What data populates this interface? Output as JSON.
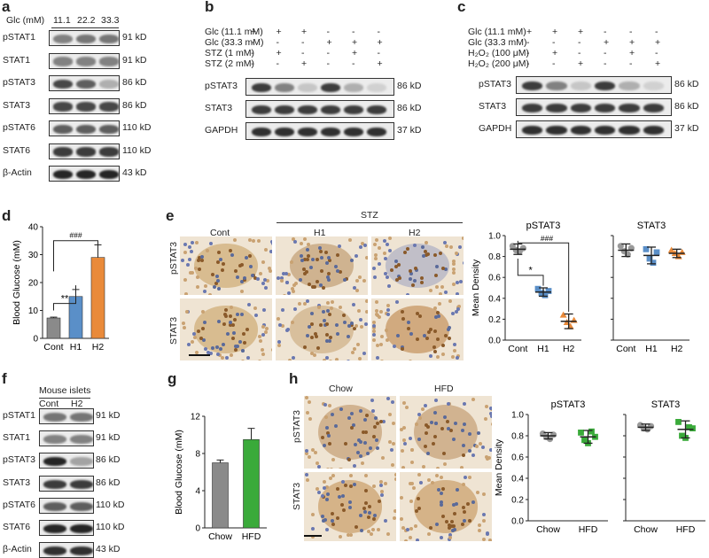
{
  "panels": {
    "a": {
      "letter": "a",
      "glc_header": "Glc (mM)",
      "glc_values": [
        "11.1",
        "22.2",
        "33.3"
      ],
      "rows": [
        {
          "label": "pSTAT1",
          "kd": "91 kD"
        },
        {
          "label": "STAT1",
          "kd": "91 kD"
        },
        {
          "label": "pSTAT3",
          "kd": "86 kD"
        },
        {
          "label": "STAT3",
          "kd": "86 kD"
        },
        {
          "label": "pSTAT6",
          "kd": "110 kD"
        },
        {
          "label": "STAT6",
          "kd": "110 kD"
        },
        {
          "label": "β-Actin",
          "kd": "43 kD"
        }
      ]
    },
    "b": {
      "letter": "b",
      "conditions": [
        {
          "label": "Glc (11.1 mM)",
          "signs": [
            "+",
            "+",
            "+",
            "-",
            "-",
            "-"
          ]
        },
        {
          "label": "Glc (33.3 mM)",
          "signs": [
            "-",
            "-",
            "-",
            "+",
            "+",
            "+"
          ]
        },
        {
          "label": "STZ (1 mM)",
          "signs": [
            "-",
            "+",
            "-",
            "-",
            "+",
            "-"
          ]
        },
        {
          "label": "STZ (2 mM)",
          "signs": [
            "-",
            "-",
            "+",
            "-",
            "-",
            "+"
          ]
        }
      ],
      "rows": [
        {
          "label": "pSTAT3",
          "kd": "86 kD"
        },
        {
          "label": "STAT3",
          "kd": "86 kD"
        },
        {
          "label": "GAPDH",
          "kd": "37 kD"
        }
      ]
    },
    "c": {
      "letter": "c",
      "conditions": [
        {
          "label": "Glc (11.1 mM)",
          "signs": [
            "+",
            "+",
            "+",
            "-",
            "-",
            "-"
          ]
        },
        {
          "label": "Glc (33.3 mM)",
          "signs": [
            "-",
            "-",
            "-",
            "+",
            "+",
            "+"
          ]
        },
        {
          "label": "H₂O₂ (100 μM)",
          "signs": [
            "-",
            "+",
            "-",
            "-",
            "+",
            "-"
          ]
        },
        {
          "label": "H₂O₂ (200 μM)",
          "signs": [
            "-",
            "-",
            "+",
            "-",
            "-",
            "+"
          ]
        }
      ],
      "rows": [
        {
          "label": "pSTAT3",
          "kd": "86 kD"
        },
        {
          "label": "STAT3",
          "kd": "86 kD"
        },
        {
          "label": "GAPDH",
          "kd": "37 kD"
        }
      ]
    },
    "d": {
      "letter": "d"
    },
    "e": {
      "letter": "e",
      "group_label": "STZ",
      "columns": [
        "Cont",
        "H1",
        "H2"
      ],
      "rows": [
        "pSTAT3",
        "STAT3"
      ]
    },
    "f": {
      "letter": "f",
      "header": "Mouse islets",
      "columns": [
        "Cont",
        "H2"
      ],
      "rows": [
        {
          "label": "pSTAT1",
          "kd": "91 kD"
        },
        {
          "label": "STAT1",
          "kd": "91 kD"
        },
        {
          "label": "pSTAT3",
          "kd": "86 kD"
        },
        {
          "label": "STAT3",
          "kd": "86 kD"
        },
        {
          "label": "pSTAT6",
          "kd": "110 kD"
        },
        {
          "label": "STAT6",
          "kd": "110 kD"
        },
        {
          "label": "β-Actin",
          "kd": "43 kD"
        }
      ]
    },
    "g": {
      "letter": "g"
    },
    "h": {
      "letter": "h",
      "columns": [
        "Chow",
        "HFD"
      ],
      "rows": [
        "pSTAT3",
        "STAT3"
      ]
    }
  },
  "chart_data": [
    {
      "id": "d",
      "type": "bar",
      "categories": [
        "Cont",
        "H1",
        "H2"
      ],
      "values": [
        7.3,
        15,
        29
      ],
      "errors": [
        0.3,
        2.5,
        4.5
      ],
      "colors": [
        "#8a8a8a",
        "#5a8fc8",
        "#e98a3a"
      ],
      "ylabel": "Blood Glucose (mM)",
      "ylim": [
        0,
        40
      ],
      "yticks": [
        "0",
        "10",
        "20",
        "30",
        "40"
      ],
      "annotations": [
        "**",
        "###"
      ]
    },
    {
      "id": "e1",
      "type": "scatter",
      "title": "pSTAT3",
      "categories": [
        "Cont",
        "H1",
        "H2"
      ],
      "means": [
        0.87,
        0.46,
        0.18
      ],
      "sd": [
        0.05,
        0.04,
        0.07
      ],
      "points": [
        [
          0.9,
          0.86,
          0.85,
          0.88
        ],
        [
          0.49,
          0.45,
          0.43,
          0.47
        ],
        [
          0.24,
          0.17,
          0.13,
          0.19
        ]
      ],
      "colors": [
        "#9a9a9a",
        "#5a8fc8",
        "#e98a3a"
      ],
      "ylabel": "Mean Density",
      "ylim": [
        0,
        1.0
      ],
      "yticks": [
        "0.0",
        "0.2",
        "0.4",
        "0.6",
        "0.8",
        "1.0"
      ],
      "annotations": [
        "*",
        "###"
      ]
    },
    {
      "id": "e2",
      "type": "scatter",
      "title": "STAT3",
      "categories": [
        "Cont",
        "H1",
        "H2"
      ],
      "means": [
        0.86,
        0.81,
        0.83
      ],
      "sd": [
        0.06,
        0.08,
        0.04
      ],
      "points": [
        [
          0.9,
          0.85,
          0.82,
          0.88
        ],
        [
          0.87,
          0.78,
          0.74,
          0.84
        ],
        [
          0.86,
          0.83,
          0.8,
          0.84
        ]
      ],
      "colors": [
        "#9a9a9a",
        "#5a8fc8",
        "#e98a3a"
      ],
      "ylim": [
        0,
        1.0
      ]
    },
    {
      "id": "g",
      "type": "bar",
      "categories": [
        "Chow",
        "HFD"
      ],
      "values": [
        7,
        9.5
      ],
      "errors": [
        0.3,
        1.2
      ],
      "colors": [
        "#8a8a8a",
        "#3aaa3a"
      ],
      "ylabel": "Blood Glucose (mM)",
      "ylim": [
        0,
        12
      ],
      "yticks": [
        "0",
        "4",
        "8",
        "12"
      ]
    },
    {
      "id": "h1",
      "type": "scatter",
      "title": "pSTAT3",
      "categories": [
        "Chow",
        "HFD"
      ],
      "means": [
        0.8,
        0.79
      ],
      "sd": [
        0.03,
        0.06
      ],
      "points": [
        [
          0.82,
          0.79,
          0.77,
          0.81
        ],
        [
          0.83,
          0.76,
          0.73,
          0.84,
          0.79
        ]
      ],
      "colors": [
        "#9a9a9a",
        "#3aaa3a"
      ],
      "ylabel": "Mean Density",
      "ylim": [
        0,
        1.0
      ],
      "yticks": [
        "0.0",
        "0.2",
        "0.4",
        "0.6",
        "0.8",
        "1.0"
      ]
    },
    {
      "id": "h2",
      "type": "scatter",
      "title": "STAT3",
      "categories": [
        "Chow",
        "HFD"
      ],
      "means": [
        0.88,
        0.86
      ],
      "sd": [
        0.03,
        0.08
      ],
      "points": [
        [
          0.9,
          0.87,
          0.86,
          0.89
        ],
        [
          0.93,
          0.8,
          0.78,
          0.88,
          0.87
        ]
      ],
      "colors": [
        "#9a9a9a",
        "#3aaa3a"
      ],
      "ylim": [
        0,
        1.0
      ]
    }
  ]
}
